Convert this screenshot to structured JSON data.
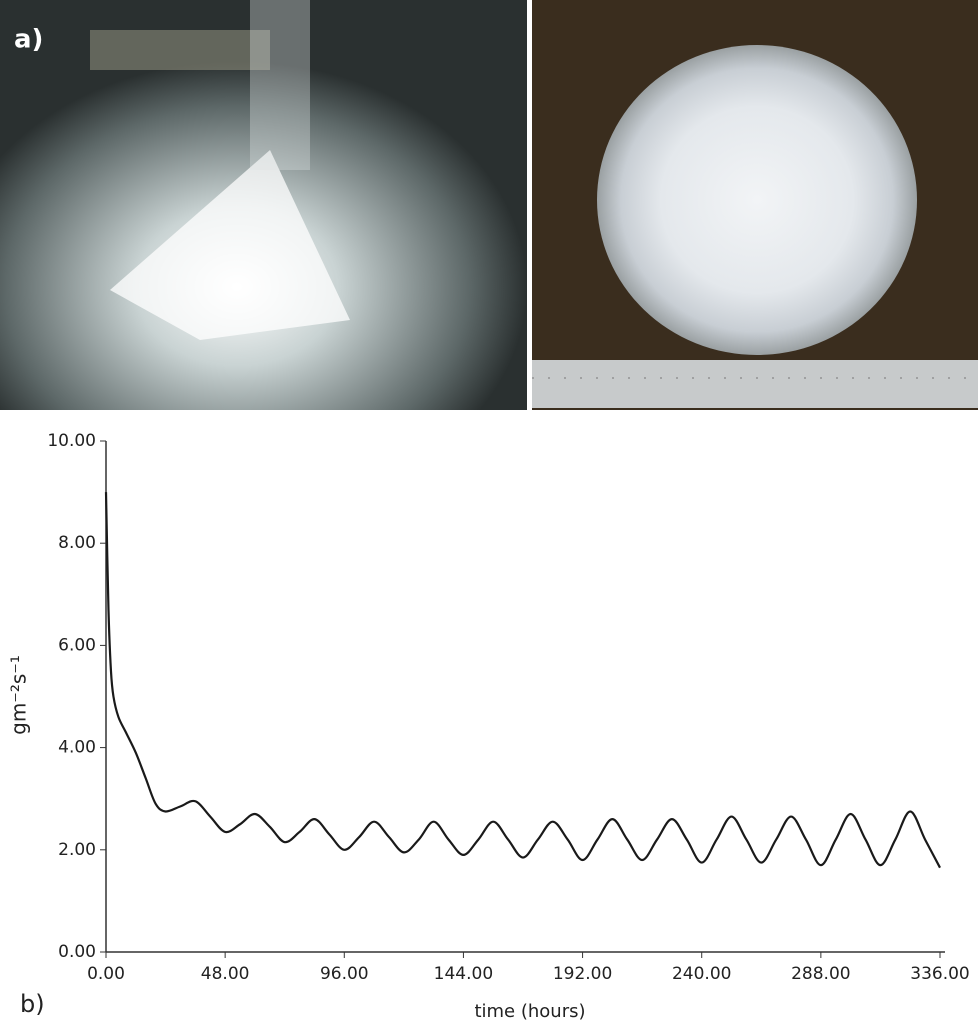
{
  "panel_labels": {
    "a": "a)",
    "b": "b)"
  },
  "chart_data": {
    "type": "line",
    "xlabel": "time (hours)",
    "ylabel": "gm⁻²s⁻¹",
    "xlim": [
      0,
      336
    ],
    "ylim": [
      0,
      10
    ],
    "xticks": [
      {
        "value": 0,
        "label": "0.00"
      },
      {
        "value": 48,
        "label": "48.00"
      },
      {
        "value": 96,
        "label": "96.00"
      },
      {
        "value": 144,
        "label": "144.00"
      },
      {
        "value": 192,
        "label": "192.00"
      },
      {
        "value": 240,
        "label": "240.00"
      },
      {
        "value": 288,
        "label": "288.00"
      },
      {
        "value": 336,
        "label": "336.00"
      }
    ],
    "yticks": [
      {
        "value": 0,
        "label": "0.00"
      },
      {
        "value": 2,
        "label": "2.00"
      },
      {
        "value": 4,
        "label": "4.00"
      },
      {
        "value": 6,
        "label": "6.00"
      },
      {
        "value": 8,
        "label": "8.00"
      },
      {
        "value": 10,
        "label": "10.00"
      }
    ],
    "color": "#1a1a1a",
    "x": [
      0,
      1,
      2,
      3,
      5,
      8,
      12,
      16,
      20,
      24,
      30,
      36,
      42,
      48,
      54,
      60,
      66,
      72,
      78,
      84,
      90,
      96,
      102,
      108,
      114,
      120,
      126,
      132,
      138,
      144,
      150,
      156,
      162,
      168,
      174,
      180,
      186,
      192,
      198,
      204,
      210,
      216,
      222,
      228,
      234,
      240,
      246,
      252,
      258,
      264,
      270,
      276,
      282,
      288,
      294,
      300,
      306,
      312,
      318,
      324,
      330,
      336
    ],
    "values": [
      9.0,
      6.7,
      5.5,
      5.0,
      4.6,
      4.3,
      3.9,
      3.4,
      2.9,
      2.75,
      2.85,
      2.95,
      2.65,
      2.35,
      2.5,
      2.7,
      2.45,
      2.15,
      2.35,
      2.6,
      2.3,
      2.0,
      2.25,
      2.55,
      2.25,
      1.95,
      2.2,
      2.55,
      2.2,
      1.9,
      2.2,
      2.55,
      2.2,
      1.85,
      2.2,
      2.55,
      2.2,
      1.8,
      2.2,
      2.6,
      2.2,
      1.8,
      2.2,
      2.6,
      2.2,
      1.75,
      2.2,
      2.65,
      2.2,
      1.75,
      2.2,
      2.65,
      2.2,
      1.7,
      2.2,
      2.7,
      2.2,
      1.7,
      2.2,
      2.75,
      2.2,
      1.65
    ]
  }
}
